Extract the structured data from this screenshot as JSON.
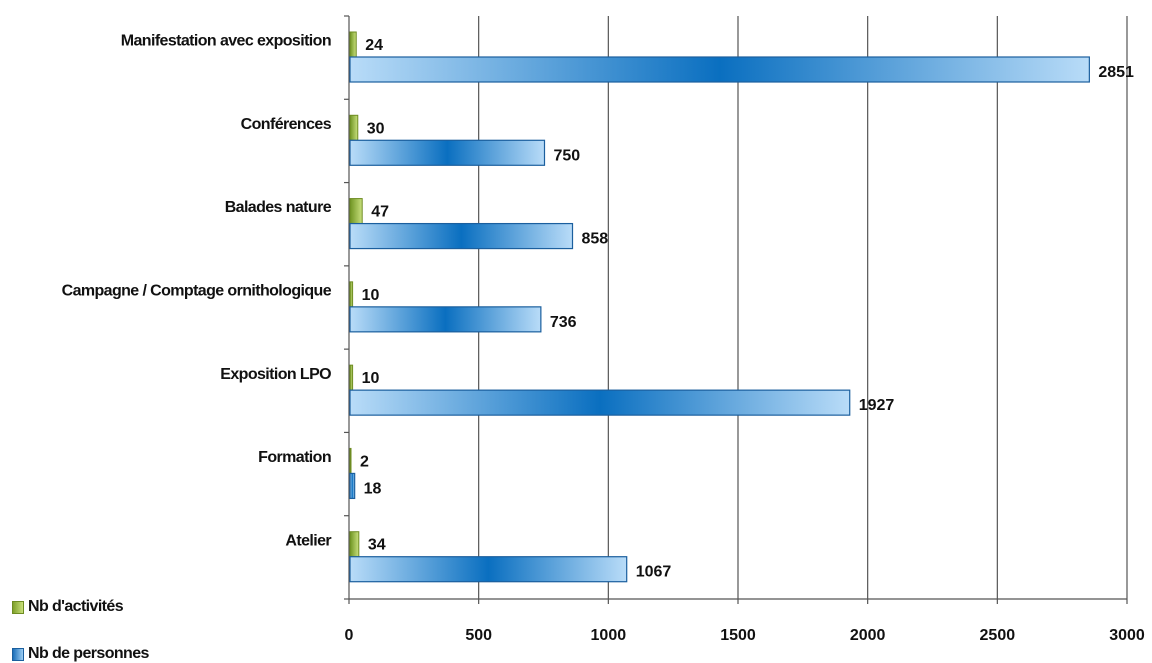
{
  "chart_data": {
    "type": "bar",
    "orientation": "horizontal",
    "categories": [
      "Manifestation avec exposition",
      "Conférences",
      "Balades nature",
      "Campagne / Comptage ornithologique",
      "Exposition LPO",
      "Formation",
      "Atelier"
    ],
    "series": [
      {
        "name": "Nb d'activités",
        "values": [
          24,
          30,
          47,
          10,
          10,
          2,
          34
        ],
        "color": "#9bbb59"
      },
      {
        "name": "Nb de personnes",
        "values": [
          2851,
          750,
          858,
          736,
          1927,
          18,
          1067
        ],
        "color": "#0070c0"
      }
    ],
    "xlim": [
      0,
      3000
    ],
    "xticks": [
      0,
      500,
      1000,
      1500,
      2000,
      2500,
      3000
    ],
    "grid": "vertical",
    "legend_position": "bottom-left",
    "data_labels": true
  },
  "legend": {
    "activities": "Nb d'activités",
    "persons": "Nb de personnes"
  }
}
